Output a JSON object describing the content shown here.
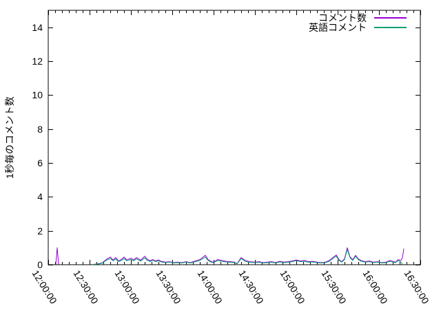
{
  "chart_data": {
    "type": "line",
    "title": "",
    "xlabel": "",
    "ylabel": "1秒毎のコメント数",
    "x_unit": "minutes_after_12:00:00",
    "x_range_minutes": [
      0,
      270
    ],
    "ylim": [
      0,
      15
    ],
    "x_tick_labels": [
      "12:00:00",
      "12:30:00",
      "13:00:00",
      "13:30:00",
      "14:00:00",
      "14:30:00",
      "15:00:00",
      "15:30:00",
      "16:00:00",
      "16:30:00"
    ],
    "x_tick_interval_minutes": 30,
    "x_minor_tick_interval_minutes": 5,
    "y_tick_labels": [
      "0",
      "2",
      "4",
      "6",
      "8",
      "10",
      "12",
      "14"
    ],
    "y_tick_interval": 2,
    "grid": false,
    "legend_position": "top-right-inside",
    "axis_color": "#000000",
    "background_color": "#ffffff",
    "series": [
      {
        "name": "コメント数",
        "color": "#9400d3",
        "segments": [
          [
            [
              5.5,
              0.02
            ],
            [
              6.5,
              1.0
            ],
            [
              7.5,
              0.02
            ]
          ],
          [
            [
              33,
              0.02
            ],
            [
              36,
              0.05
            ],
            [
              39,
              0.1
            ],
            [
              42,
              0.3
            ],
            [
              45,
              0.45
            ],
            [
              47,
              0.28
            ],
            [
              49,
              0.42
            ],
            [
              51,
              0.22
            ],
            [
              53,
              0.3
            ],
            [
              55,
              0.45
            ],
            [
              57,
              0.28
            ],
            [
              60,
              0.38
            ],
            [
              62,
              0.28
            ],
            [
              64,
              0.42
            ],
            [
              67,
              0.26
            ],
            [
              70,
              0.5
            ],
            [
              72,
              0.3
            ],
            [
              74,
              0.24
            ],
            [
              76,
              0.3
            ],
            [
              78,
              0.22
            ],
            [
              80,
              0.28
            ],
            [
              82,
              0.2
            ],
            [
              85,
              0.15
            ],
            [
              88,
              0.18
            ],
            [
              91,
              0.12
            ],
            [
              94,
              0.15
            ],
            [
              97,
              0.12
            ],
            [
              100,
              0.18
            ],
            [
              103,
              0.12
            ],
            [
              106,
              0.2
            ],
            [
              110,
              0.3
            ],
            [
              114,
              0.55
            ],
            [
              116,
              0.3
            ],
            [
              118,
              0.2
            ],
            [
              120,
              0.15
            ],
            [
              123,
              0.3
            ],
            [
              126,
              0.25
            ],
            [
              129,
              0.2
            ],
            [
              132,
              0.18
            ],
            [
              135,
              0.15
            ],
            [
              137,
              0.06
            ],
            [
              140,
              0.42
            ],
            [
              143,
              0.25
            ],
            [
              146,
              0.18
            ],
            [
              150,
              0.15
            ],
            [
              153,
              0.18
            ],
            [
              156,
              0.12
            ],
            [
              159,
              0.15
            ],
            [
              162,
              0.18
            ],
            [
              165,
              0.12
            ],
            [
              168,
              0.2
            ],
            [
              171,
              0.15
            ],
            [
              174,
              0.18
            ],
            [
              177,
              0.22
            ],
            [
              180,
              0.28
            ],
            [
              183,
              0.22
            ],
            [
              186,
              0.25
            ],
            [
              189,
              0.18
            ],
            [
              192,
              0.2
            ],
            [
              195,
              0.15
            ],
            [
              198,
              0.12
            ],
            [
              201,
              0.15
            ],
            [
              204,
              0.25
            ],
            [
              207,
              0.45
            ],
            [
              209,
              0.57
            ],
            [
              211,
              0.3
            ],
            [
              213,
              0.18
            ],
            [
              215,
              0.35
            ],
            [
              217,
              1.0
            ],
            [
              219,
              0.45
            ],
            [
              221,
              0.3
            ],
            [
              223,
              0.55
            ],
            [
              225,
              0.35
            ],
            [
              227,
              0.25
            ],
            [
              230,
              0.18
            ],
            [
              233,
              0.22
            ],
            [
              236,
              0.15
            ],
            [
              239,
              0.18
            ],
            [
              242,
              0.12
            ],
            [
              245,
              0.15
            ],
            [
              248,
              0.25
            ],
            [
              250,
              0.2
            ],
            [
              252,
              0.15
            ],
            [
              254,
              0.3
            ],
            [
              256,
              0.25
            ],
            [
              257,
              0.4
            ],
            [
              258,
              0.95
            ]
          ]
        ]
      },
      {
        "name": "英語コメント",
        "color": "#009e73",
        "segments": [
          [
            [
              33,
              0.02
            ],
            [
              36,
              0.04
            ],
            [
              39,
              0.08
            ],
            [
              42,
              0.25
            ],
            [
              45,
              0.36
            ],
            [
              47,
              0.23
            ],
            [
              49,
              0.34
            ],
            [
              51,
              0.18
            ],
            [
              53,
              0.25
            ],
            [
              55,
              0.36
            ],
            [
              57,
              0.23
            ],
            [
              60,
              0.31
            ],
            [
              62,
              0.23
            ],
            [
              64,
              0.34
            ],
            [
              67,
              0.21
            ],
            [
              70,
              0.4
            ],
            [
              72,
              0.25
            ],
            [
              74,
              0.19
            ],
            [
              76,
              0.25
            ],
            [
              78,
              0.18
            ],
            [
              80,
              0.23
            ],
            [
              82,
              0.16
            ],
            [
              85,
              0.12
            ],
            [
              88,
              0.15
            ],
            [
              91,
              0.1
            ],
            [
              94,
              0.12
            ],
            [
              97,
              0.1
            ],
            [
              100,
              0.15
            ],
            [
              103,
              0.1
            ],
            [
              106,
              0.16
            ],
            [
              110,
              0.25
            ],
            [
              114,
              0.45
            ],
            [
              116,
              0.25
            ],
            [
              118,
              0.16
            ],
            [
              120,
              0.12
            ],
            [
              123,
              0.25
            ],
            [
              126,
              0.2
            ],
            [
              129,
              0.16
            ],
            [
              132,
              0.14
            ],
            [
              135,
              0.12
            ],
            [
              137,
              0.05
            ],
            [
              140,
              0.36
            ],
            [
              143,
              0.2
            ],
            [
              146,
              0.14
            ],
            [
              150,
              0.12
            ],
            [
              153,
              0.14
            ],
            [
              156,
              0.1
            ],
            [
              159,
              0.12
            ],
            [
              162,
              0.14
            ],
            [
              165,
              0.1
            ],
            [
              168,
              0.16
            ],
            [
              171,
              0.12
            ],
            [
              174,
              0.14
            ],
            [
              177,
              0.18
            ],
            [
              180,
              0.24
            ],
            [
              183,
              0.18
            ],
            [
              186,
              0.2
            ],
            [
              189,
              0.14
            ],
            [
              192,
              0.16
            ],
            [
              195,
              0.12
            ],
            [
              198,
              0.1
            ],
            [
              201,
              0.12
            ],
            [
              204,
              0.2
            ],
            [
              207,
              0.4
            ],
            [
              209,
              0.5
            ],
            [
              211,
              0.25
            ],
            [
              213,
              0.15
            ],
            [
              215,
              0.3
            ],
            [
              217,
              0.9
            ],
            [
              219,
              0.4
            ],
            [
              221,
              0.25
            ],
            [
              223,
              0.5
            ],
            [
              225,
              0.3
            ],
            [
              227,
              0.2
            ],
            [
              230,
              0.15
            ],
            [
              233,
              0.18
            ],
            [
              236,
              0.12
            ],
            [
              239,
              0.15
            ],
            [
              242,
              0.1
            ],
            [
              245,
              0.12
            ],
            [
              248,
              0.2
            ],
            [
              250,
              0.15
            ],
            [
              252,
              0.12
            ],
            [
              254,
              0.25
            ],
            [
              256,
              0.15
            ],
            [
              257,
              0.02
            ]
          ]
        ]
      }
    ]
  }
}
